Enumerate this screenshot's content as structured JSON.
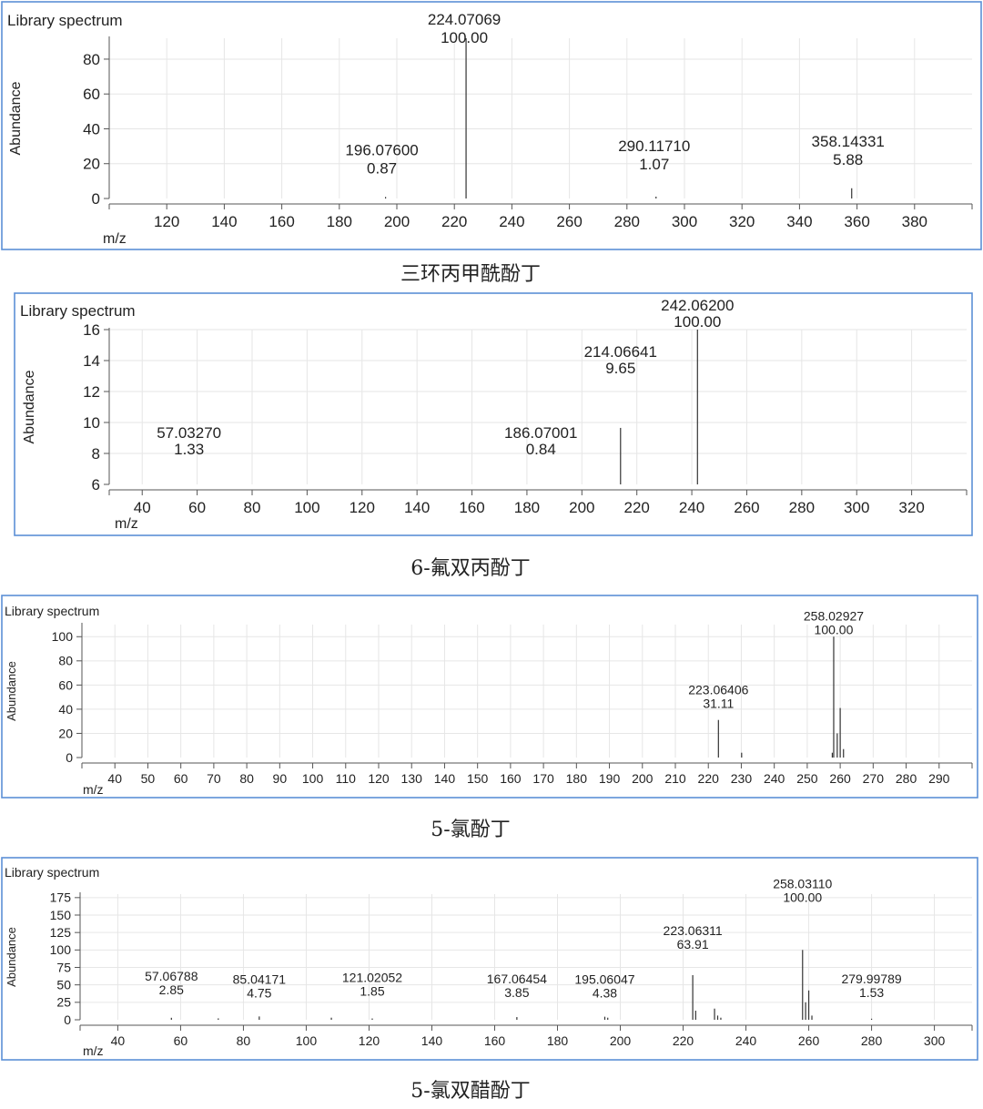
{
  "colors": {
    "frame": "#5b8fd6",
    "axis": "#555555",
    "grid": "#e6e6e6",
    "peak": "#333333",
    "text": "#222222"
  },
  "chart_data": [
    {
      "type": "bar",
      "panel_title": "Library spectrum",
      "caption": "三环丙甲酰酚丁",
      "xlabel": "m/z",
      "ylabel": "Abundance",
      "xlim": [
        100,
        400
      ],
      "ylim": [
        0,
        92
      ],
      "xticks": [
        120,
        140,
        160,
        180,
        200,
        220,
        240,
        260,
        280,
        300,
        320,
        340,
        360,
        380
      ],
      "yticks": [
        0,
        20,
        40,
        60,
        80
      ],
      "grid": true,
      "peaks": [
        {
          "x": 224.07069,
          "y": 100,
          "mz_label": "224.07069",
          "int_label": "100.00"
        },
        {
          "x": 196.076,
          "y": 0.87,
          "mz_label": "196.07600",
          "int_label": "0.87"
        },
        {
          "x": 290.1171,
          "y": 1.07,
          "mz_label": "290.11710",
          "int_label": "1.07"
        },
        {
          "x": 358.14331,
          "y": 5.88,
          "mz_label": "358.14331",
          "int_label": "5.88"
        }
      ]
    },
    {
      "type": "bar",
      "panel_title": "Library spectrum",
      "caption": "6-氟双丙酚丁",
      "xlabel": "m/z",
      "ylabel": "Abundance",
      "xlim": [
        28,
        340
      ],
      "ylim": [
        6,
        16
      ],
      "xticks": [
        40,
        60,
        80,
        100,
        120,
        140,
        160,
        180,
        200,
        220,
        240,
        260,
        280,
        300,
        320
      ],
      "yticks": [
        6,
        8,
        10,
        12,
        14,
        16
      ],
      "grid": true,
      "peaks": [
        {
          "x": 242.062,
          "y": 100,
          "mz_label": "242.06200",
          "int_label": "100.00"
        },
        {
          "x": 214.06641,
          "y": 9.65,
          "mz_label": "214.06641",
          "int_label": "9.65"
        },
        {
          "x": 186.07001,
          "y": 0.84,
          "mz_label": "186.07001",
          "int_label": "0.84"
        },
        {
          "x": 57.0327,
          "y": 1.33,
          "mz_label": "57.03270",
          "int_label": "1.33"
        }
      ]
    },
    {
      "type": "bar",
      "panel_title": "Library spectrum",
      "caption": "5-氯酚丁",
      "xlabel": "m/z",
      "ylabel": "Abundance",
      "xlim": [
        30,
        300
      ],
      "ylim": [
        0,
        110
      ],
      "xticks": [
        40,
        50,
        60,
        70,
        80,
        90,
        100,
        110,
        120,
        130,
        140,
        150,
        160,
        170,
        180,
        190,
        200,
        210,
        220,
        230,
        240,
        250,
        260,
        270,
        280,
        290
      ],
      "yticks": [
        0,
        20,
        40,
        60,
        80,
        100
      ],
      "grid": true,
      "peaks": [
        {
          "x": 258.02927,
          "y": 100,
          "mz_label": "258.02927",
          "int_label": "100.00"
        },
        {
          "x": 223.06406,
          "y": 31.11,
          "mz_label": "223.06406",
          "int_label": "31.11"
        },
        {
          "x": 257.6,
          "y": 4
        },
        {
          "x": 259.1,
          "y": 20
        },
        {
          "x": 260.0,
          "y": 41
        },
        {
          "x": 261.0,
          "y": 7
        },
        {
          "x": 230.1,
          "y": 4
        }
      ]
    },
    {
      "type": "bar",
      "panel_title": "Library spectrum",
      "caption": "5-氯双醋酚丁",
      "xlabel": "m/z",
      "ylabel": "Abundance",
      "xlim": [
        28,
        312
      ],
      "ylim": [
        0,
        180
      ],
      "xticks": [
        40,
        60,
        80,
        100,
        120,
        140,
        160,
        180,
        200,
        220,
        240,
        260,
        280,
        300
      ],
      "yticks": [
        0,
        25,
        50,
        75,
        100,
        125,
        150,
        175
      ],
      "grid": true,
      "peaks": [
        {
          "x": 258.0311,
          "y": 100,
          "mz_label": "258.03110",
          "int_label": "100.00"
        },
        {
          "x": 223.06311,
          "y": 63.91,
          "mz_label": "223.06311",
          "int_label": "63.91"
        },
        {
          "x": 57.06788,
          "y": 2.85,
          "mz_label": "57.06788",
          "int_label": "2.85"
        },
        {
          "x": 85.04171,
          "y": 4.75,
          "mz_label": "85.04171",
          "int_label": "4.75"
        },
        {
          "x": 121.02052,
          "y": 1.85,
          "mz_label": "121.02052",
          "int_label": "1.85"
        },
        {
          "x": 167.06454,
          "y": 3.85,
          "mz_label": "167.06454",
          "int_label": "3.85"
        },
        {
          "x": 195.06047,
          "y": 4.38,
          "mz_label": "195.06047",
          "int_label": "4.38"
        },
        {
          "x": 279.99789,
          "y": 1.53,
          "mz_label": "279.99789",
          "int_label": "1.53"
        },
        {
          "x": 224.0,
          "y": 13
        },
        {
          "x": 230.0,
          "y": 16
        },
        {
          "x": 231.0,
          "y": 6
        },
        {
          "x": 232.0,
          "y": 3
        },
        {
          "x": 259.0,
          "y": 25
        },
        {
          "x": 260.0,
          "y": 42
        },
        {
          "x": 261.0,
          "y": 6
        },
        {
          "x": 72.0,
          "y": 2
        },
        {
          "x": 108.0,
          "y": 3
        },
        {
          "x": 196.0,
          "y": 3
        }
      ]
    }
  ]
}
